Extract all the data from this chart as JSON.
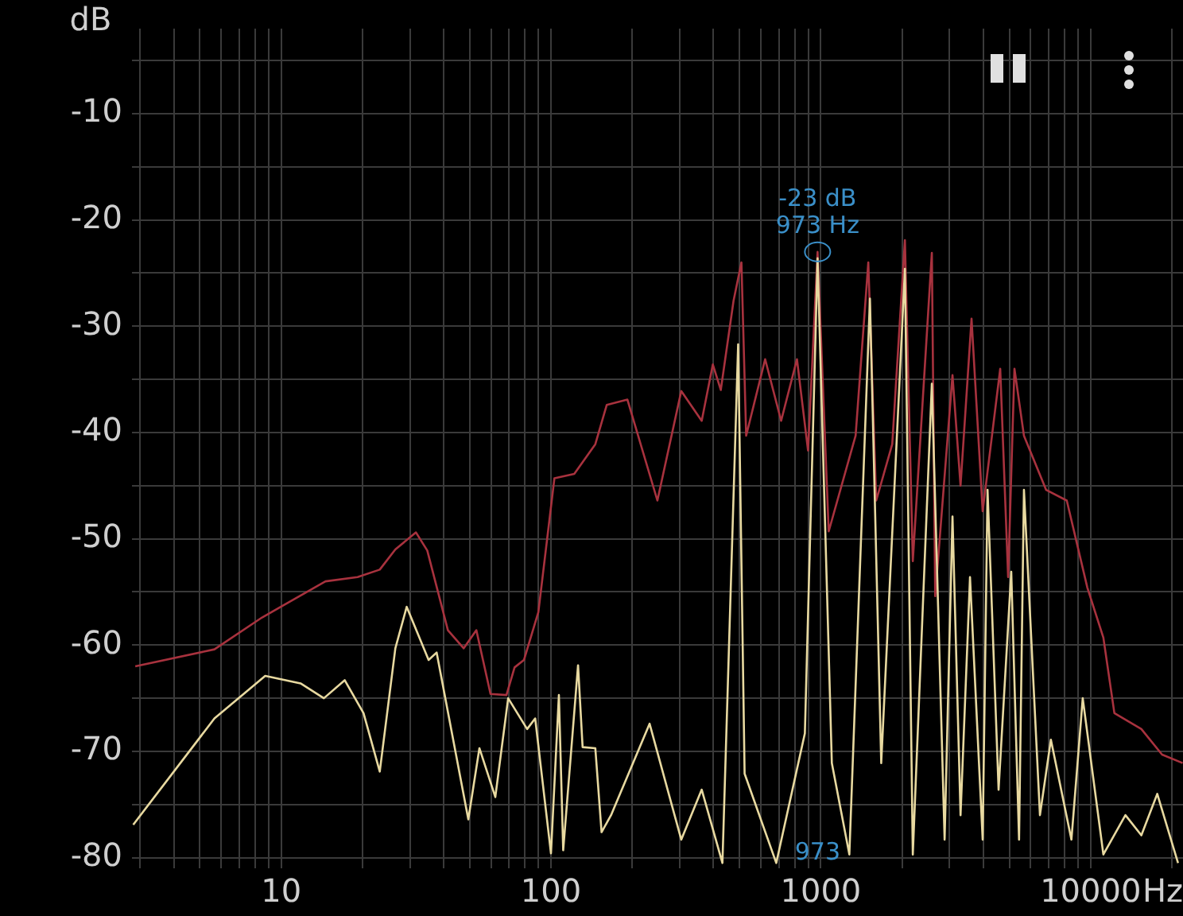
{
  "chart_data": {
    "type": "line",
    "xlabel": "Hz",
    "ylabel": "dB",
    "log": "x",
    "grid": true,
    "legend": false,
    "marker": "none",
    "line_style": "solid",
    "xlim": [
      2.8,
      22000
    ],
    "ylim": [
      -81,
      -2
    ],
    "xticks": [
      {
        "value": 3,
        "label": null
      },
      {
        "value": 4,
        "label": null
      },
      {
        "value": 5,
        "label": null
      },
      {
        "value": 6,
        "label": null
      },
      {
        "value": 7,
        "label": null
      },
      {
        "value": 8,
        "label": null
      },
      {
        "value": 9,
        "label": null
      },
      10,
      {
        "value": 20,
        "label": null
      },
      {
        "value": 30,
        "label": null
      },
      {
        "value": 40,
        "label": null
      },
      {
        "value": 50,
        "label": null
      },
      {
        "value": 60,
        "label": null
      },
      {
        "value": 70,
        "label": null
      },
      {
        "value": 80,
        "label": null
      },
      {
        "value": 90,
        "label": null
      },
      100,
      {
        "value": 200,
        "label": null
      },
      {
        "value": 300,
        "label": null
      },
      {
        "value": 400,
        "label": null
      },
      {
        "value": 500,
        "label": null
      },
      {
        "value": 600,
        "label": null
      },
      {
        "value": 700,
        "label": null
      },
      {
        "value": 800,
        "label": null
      },
      {
        "value": 900,
        "label": null
      },
      1000,
      {
        "value": 2000,
        "label": null
      },
      {
        "value": 3000,
        "label": null
      },
      {
        "value": 4000,
        "label": null
      },
      {
        "value": 5000,
        "label": null
      },
      {
        "value": 6000,
        "label": null
      },
      {
        "value": 7000,
        "label": null
      },
      {
        "value": 8000,
        "label": null
      },
      {
        "value": 9000,
        "label": null
      },
      10000,
      {
        "value": 20000,
        "label": null
      }
    ],
    "yticks": [
      {
        "value": -80,
        "label": "-80"
      },
      {
        "value": -75,
        "label": null
      },
      {
        "value": -70,
        "label": "-70"
      },
      {
        "value": -65,
        "label": null
      },
      {
        "value": -60,
        "label": "-60"
      },
      {
        "value": -55,
        "label": null
      },
      {
        "value": -50,
        "label": "-50"
      },
      {
        "value": -45,
        "label": null
      },
      {
        "value": -40,
        "label": "-40"
      },
      {
        "value": -35,
        "label": null
      },
      {
        "value": -30,
        "label": "-30"
      },
      {
        "value": -25,
        "label": null
      },
      {
        "value": -20,
        "label": "-20"
      },
      {
        "value": -15,
        "label": null
      },
      {
        "value": -10,
        "label": "-10"
      },
      {
        "value": -5,
        "label": null
      }
    ],
    "series": [
      {
        "color": "#a8323e",
        "x": [
          2.88,
          5.66,
          8.5,
          14.6,
          19.2,
          23.2,
          26.5,
          31.6,
          34.8,
          41.5,
          47.5,
          52.9,
          59.7,
          68.4,
          73.3,
          79.4,
          89.8,
          103,
          122,
          146,
          161,
          192,
          248,
          304,
          362,
          398,
          426,
          475,
          508,
          529,
          622,
          713,
          816,
          897,
          973,
          1070,
          1346,
          1500,
          1605,
          1840,
          2050,
          2193,
          2580,
          2655,
          3077,
          3296,
          3620,
          3981,
          4624,
          4947,
          5221,
          5662,
          6844,
          8160,
          9727,
          11150,
          12250,
          15420,
          18400,
          21930
        ],
        "values": [
          -62,
          -60.4,
          -57.4,
          -54,
          -53.6,
          -52.9,
          -51,
          -49.4,
          -51.1,
          -58.6,
          -60.3,
          -58.6,
          -64.6,
          -64.7,
          -62.1,
          -61.4,
          -56.9,
          -44.3,
          -43.9,
          -41.1,
          -37.4,
          -36.9,
          -46.4,
          -36.1,
          -38.9,
          -33.6,
          -36,
          -27.6,
          -24,
          -40.3,
          -33.1,
          -38.9,
          -33.1,
          -41.7,
          -23,
          -49.3,
          -40.3,
          -24,
          -46.4,
          -41.1,
          -21.9,
          -52.1,
          -23.1,
          -55.4,
          -34.6,
          -45,
          -29.3,
          -47.4,
          -34,
          -53.6,
          -34,
          -40.3,
          -45.4,
          -46.4,
          -54.6,
          -59.3,
          -66.4,
          -67.9,
          -70.3,
          -71.1
        ]
      },
      {
        "color": "#e8d9a0",
        "x": [
          2.83,
          5.66,
          8.73,
          11.8,
          14.4,
          17.2,
          20.2,
          23.2,
          26.5,
          29.2,
          35.2,
          37.7,
          49.4,
          54.3,
          62.2,
          69.4,
          81.6,
          87.4,
          100,
          107,
          111,
          126,
          131,
          146,
          154,
          167,
          232,
          304,
          362,
          432,
          494,
          522,
          684,
          873,
          973,
          1099,
          1276,
          1521,
          1675,
          2050,
          2193,
          2580,
          2877,
          3077,
          3296,
          3573,
          3981,
          4150,
          4560,
          5080,
          5430,
          5662,
          6490,
          7125,
          8490,
          9350,
          11150,
          13460,
          15420,
          17660,
          21090
        ],
        "values": [
          -76.9,
          -66.9,
          -62.9,
          -63.6,
          -65,
          -63.3,
          -66.4,
          -71.9,
          -60.3,
          -56.4,
          -61.4,
          -60.7,
          -76.4,
          -69.7,
          -74.3,
          -65,
          -67.9,
          -66.9,
          -79.6,
          -64.7,
          -79.3,
          -61.9,
          -69.6,
          -69.7,
          -77.6,
          -76,
          -67.4,
          -78.3,
          -73.6,
          -80.5,
          -31.7,
          -72.1,
          -80.5,
          -68.3,
          -23.6,
          -71.1,
          -79.7,
          -27.4,
          -71.1,
          -24.6,
          -79.7,
          -35.4,
          -78.3,
          -47.9,
          -76,
          -53.6,
          -78.3,
          -45.4,
          -73.6,
          -53.1,
          -78.3,
          -45.4,
          -76,
          -68.9,
          -78.3,
          -65,
          -79.7,
          -76,
          -77.9,
          -74,
          -80.5
        ]
      }
    ],
    "annotations": [
      {
        "text": "-23 dB\n973 Hz",
        "x": 973,
        "y": -23
      },
      "973"
    ]
  }
}
